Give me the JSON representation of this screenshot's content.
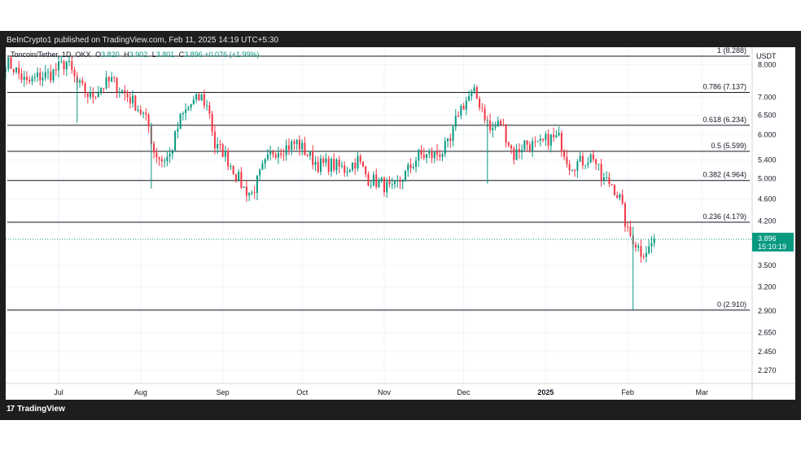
{
  "header": {
    "published_text": "BeInCrypto1 published on TradingView.com, Feb 11, 2025 14:19 UTC+5:30"
  },
  "legend": {
    "symbol": "Toncoin/Tether, 1D, OKX",
    "o_label": "O",
    "o_value": "3.820",
    "h_label": "H",
    "h_value": "3.902",
    "l_label": "L",
    "l_value": "3.801",
    "c_label": "C",
    "c_value": "3.896",
    "change": "+0.076 (+1.99%)"
  },
  "footer": {
    "brand": "TradingView",
    "brand_mark": "17"
  },
  "colors": {
    "up": "#089981",
    "down": "#f23645",
    "fib_line": "#131722",
    "grid": "#f0f3fa"
  },
  "chart_data": {
    "type": "candlestick",
    "currency_label": "USDT",
    "y_axis_labels": [
      "8.000",
      "7.000",
      "6.500",
      "6.000",
      "5.400",
      "5.000",
      "4.600",
      "4.200",
      "3.500",
      "3.200",
      "2.900",
      "2.650",
      "2.450",
      "2.270"
    ],
    "y_axis_values": [
      8.0,
      7.0,
      6.5,
      6.0,
      5.4,
      5.0,
      4.6,
      4.2,
      3.5,
      3.2,
      2.9,
      2.65,
      2.45,
      2.27
    ],
    "scale": "log",
    "ylim": [
      2.15,
      8.6
    ],
    "x_axis_labels": [
      "Jul",
      "Aug",
      "Sep",
      "Oct",
      "Nov",
      "Dec",
      "2025",
      "Feb",
      "Mar"
    ],
    "x_axis_dates": [
      "2024-07-01",
      "2024-08-01",
      "2024-09-01",
      "2024-10-01",
      "2024-11-01",
      "2024-12-01",
      "2025-01-01",
      "2025-02-01",
      "2025-03-01"
    ],
    "x_axis_bold": [
      false,
      false,
      false,
      false,
      false,
      false,
      true,
      false,
      false
    ],
    "xlim": [
      "2024-06-11",
      "2025-03-20"
    ],
    "last_price": {
      "value": 3.896,
      "label": "3.896",
      "countdown": "15:10:19"
    },
    "fib_levels": [
      {
        "label": "1 (8.288)",
        "value": 8.288
      },
      {
        "label": "0.786 (7.137)",
        "value": 7.137
      },
      {
        "label": "0.618 (6.234)",
        "value": 6.234
      },
      {
        "label": "0.5 (5.599)",
        "value": 5.599
      },
      {
        "label": "0.382 (4.964)",
        "value": 4.964
      },
      {
        "label": "0.236 (4.179)",
        "value": 4.179
      },
      {
        "label": "0 (2.910)",
        "value": 2.91
      }
    ],
    "price_path": [
      [
        "2024-06-11",
        8.1
      ],
      [
        "2024-06-14",
        7.9
      ],
      [
        "2024-06-19",
        7.4
      ],
      [
        "2024-06-23",
        7.6
      ],
      [
        "2024-06-28",
        7.7
      ],
      [
        "2024-07-04",
        8.1
      ],
      [
        "2024-07-08",
        7.4
      ],
      [
        "2024-07-13",
        7.0
      ],
      [
        "2024-07-17",
        7.3
      ],
      [
        "2024-07-21",
        7.5
      ],
      [
        "2024-07-26",
        7.1
      ],
      [
        "2024-07-30",
        6.8
      ],
      [
        "2024-08-02",
        6.5
      ],
      [
        "2024-08-04",
        6.2
      ],
      [
        "2024-08-06",
        5.6
      ],
      [
        "2024-08-09",
        5.4
      ],
      [
        "2024-08-12",
        5.5
      ],
      [
        "2024-08-16",
        6.4
      ],
      [
        "2024-08-20",
        6.8
      ],
      [
        "2024-08-24",
        7.0
      ],
      [
        "2024-08-27",
        6.6
      ],
      [
        "2024-08-29",
        5.7
      ],
      [
        "2024-09-01",
        5.6
      ],
      [
        "2024-09-05",
        5.2
      ],
      [
        "2024-09-09",
        4.8
      ],
      [
        "2024-09-12",
        4.7
      ],
      [
        "2024-09-16",
        5.2
      ],
      [
        "2024-09-20",
        5.6
      ],
      [
        "2024-09-25",
        5.7
      ],
      [
        "2024-09-29",
        5.8
      ],
      [
        "2024-10-02",
        5.6
      ],
      [
        "2024-10-07",
        5.3
      ],
      [
        "2024-10-12",
        5.3
      ],
      [
        "2024-10-17",
        5.2
      ],
      [
        "2024-10-22",
        5.4
      ],
      [
        "2024-10-26",
        5.0
      ],
      [
        "2024-10-31",
        4.9
      ],
      [
        "2024-11-04",
        4.75
      ],
      [
        "2024-11-09",
        5.1
      ],
      [
        "2024-11-14",
        5.5
      ],
      [
        "2024-11-19",
        5.5
      ],
      [
        "2024-11-23",
        5.6
      ],
      [
        "2024-11-26",
        5.8
      ],
      [
        "2024-11-29",
        6.6
      ],
      [
        "2024-12-03",
        7.0
      ],
      [
        "2024-12-05",
        7.1
      ],
      [
        "2024-12-08",
        6.7
      ],
      [
        "2024-12-11",
        6.1
      ],
      [
        "2024-12-15",
        6.3
      ],
      [
        "2024-12-20",
        5.5
      ],
      [
        "2024-12-24",
        5.8
      ],
      [
        "2024-12-29",
        5.7
      ],
      [
        "2025-01-02",
        5.9
      ],
      [
        "2025-01-06",
        5.9
      ],
      [
        "2025-01-10",
        5.3
      ],
      [
        "2025-01-14",
        5.35
      ],
      [
        "2025-01-19",
        5.5
      ],
      [
        "2025-01-22",
        5.0
      ],
      [
        "2025-01-26",
        4.9
      ],
      [
        "2025-01-29",
        4.6
      ],
      [
        "2025-02-01",
        4.0
      ],
      [
        "2025-02-03",
        3.9
      ],
      [
        "2025-02-06",
        3.7
      ],
      [
        "2025-02-09",
        3.75
      ],
      [
        "2025-02-11",
        3.896
      ]
    ],
    "wicks": [
      {
        "date": "2025-02-03",
        "low": 2.91,
        "high": 4.1
      },
      {
        "date": "2024-08-05",
        "low": 4.8,
        "high": 6.3
      },
      {
        "date": "2024-07-08",
        "low": 6.3,
        "high": 7.6
      },
      {
        "date": "2024-12-10",
        "low": 4.9,
        "high": 6.4
      }
    ]
  }
}
